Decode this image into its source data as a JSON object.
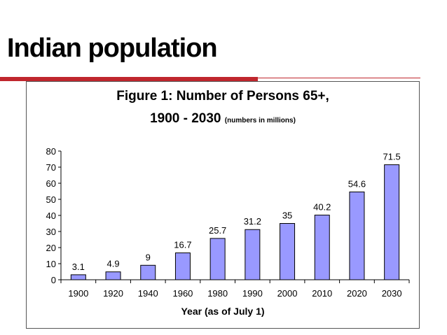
{
  "slide": {
    "title": "Indian population"
  },
  "chart_data": {
    "type": "bar",
    "title_line1": "Figure 1: Number of Persons 65+,",
    "title_line2": "1900 - 2030",
    "subtitle": "(numbers in millions)",
    "xlabel": "Year (as of July 1)",
    "ylabel": "",
    "categories": [
      "1900",
      "1920",
      "1940",
      "1960",
      "1980",
      "1990",
      "2000",
      "2010",
      "2020",
      "2030"
    ],
    "values": [
      3.1,
      4.9,
      9,
      16.7,
      25.7,
      31.2,
      35,
      40.2,
      54.6,
      71.5
    ],
    "data_labels": [
      "3.1",
      "4.9",
      "9",
      "16.7",
      "25.7",
      "31.2",
      "35",
      "40.2",
      "54.6",
      "71.5"
    ],
    "ylim": [
      0,
      80
    ],
    "yticks": [
      0,
      10,
      20,
      30,
      40,
      50,
      60,
      70,
      80
    ],
    "grid": false,
    "bar_color": "#9999ff",
    "bar_outline": "#000000",
    "accent_color": "#c0262d"
  }
}
